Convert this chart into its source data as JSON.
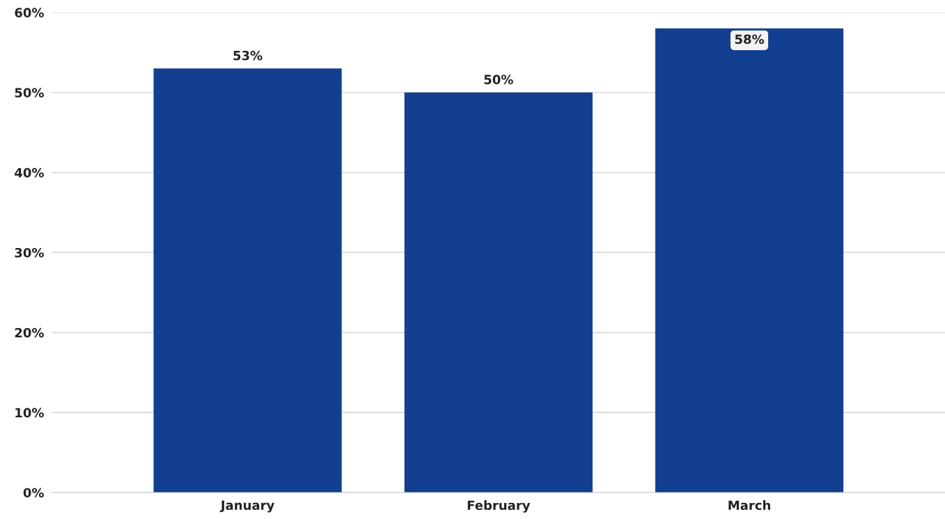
{
  "chart_data": {
    "type": "bar",
    "categories": [
      "January",
      "February",
      "March"
    ],
    "values": [
      53,
      50,
      58
    ],
    "color": "#123f8f",
    "ylim": [
      0,
      60
    ],
    "yticks": [
      {
        "value": 0,
        "label": "0%"
      },
      {
        "value": 10,
        "label": "10%"
      },
      {
        "value": 20,
        "label": "20%"
      },
      {
        "value": 30,
        "label": "30%"
      },
      {
        "value": 40,
        "label": "40%"
      },
      {
        "value": 50,
        "label": "50%"
      },
      {
        "value": 60,
        "label": "60%"
      }
    ],
    "value_labels": [
      "53%",
      "50%",
      "58%"
    ],
    "grid": "y"
  }
}
